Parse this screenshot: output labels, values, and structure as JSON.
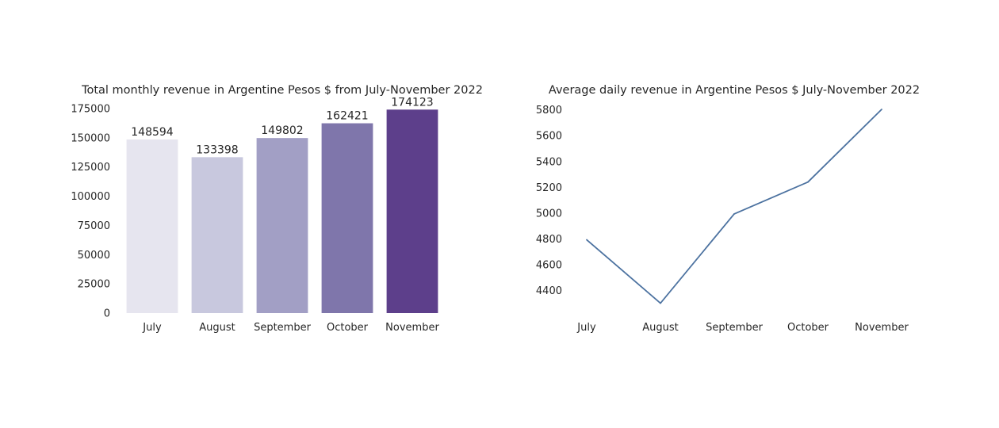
{
  "chart_data": [
    {
      "type": "bar",
      "title": "Total monthly revenue in Argentine Pesos $ from July-November 2022",
      "xlabel": "",
      "ylabel": "",
      "categories": [
        "July",
        "August",
        "September",
        "October",
        "November"
      ],
      "values": [
        148594,
        133398,
        149802,
        162421,
        174123
      ],
      "data_labels": [
        "148594",
        "133398",
        "149802",
        "162421",
        "174123"
      ],
      "colors": [
        "#e6e5ef",
        "#c8c8de",
        "#a29fc5",
        "#7f76ab",
        "#5d3f8b"
      ],
      "ylim": [
        0,
        175000
      ],
      "yticks": [
        0,
        25000,
        50000,
        75000,
        100000,
        125000,
        150000,
        175000
      ],
      "ytick_labels": [
        "0",
        "25000",
        "50000",
        "75000",
        "100000",
        "125000",
        "150000",
        "175000"
      ],
      "grid": false
    },
    {
      "type": "line",
      "title": "Average daily revenue in Argentine Pesos $ July-November 2022",
      "xlabel": "",
      "ylabel": "",
      "categories": [
        "July",
        "August",
        "September",
        "October",
        "November"
      ],
      "values": [
        4794,
        4303,
        4994,
        5241,
        5804
      ],
      "color": "#4c72a0",
      "ylim": [
        4300,
        5810
      ],
      "yticks": [
        4400,
        4600,
        4800,
        5000,
        5200,
        5400,
        5600,
        5800
      ],
      "ytick_labels": [
        "4400",
        "4600",
        "4800",
        "5000",
        "5200",
        "5400",
        "5600",
        "5800"
      ],
      "grid": false
    }
  ]
}
